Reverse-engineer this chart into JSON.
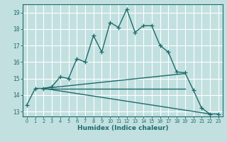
{
  "title": "",
  "xlabel": "Humidex (Indice chaleur)",
  "bg_color": "#c2e0e0",
  "grid_color": "#ffffff",
  "line_color": "#1e6b6b",
  "xlim": [
    -0.5,
    23.5
  ],
  "ylim": [
    12.7,
    19.5
  ],
  "yticks": [
    13,
    14,
    15,
    16,
    17,
    18,
    19
  ],
  "xticks": [
    0,
    1,
    2,
    3,
    4,
    5,
    6,
    7,
    8,
    9,
    10,
    11,
    12,
    13,
    14,
    15,
    16,
    17,
    18,
    19,
    20,
    21,
    22,
    23
  ],
  "line1_x": [
    0,
    1,
    2,
    3,
    4,
    5,
    6,
    7,
    8,
    9,
    10,
    11,
    12,
    13,
    14,
    15,
    16,
    17,
    18,
    19,
    20,
    21,
    22,
    23
  ],
  "line1_y": [
    13.4,
    14.4,
    14.4,
    14.5,
    15.1,
    15.0,
    16.2,
    16.0,
    17.6,
    16.6,
    18.4,
    18.1,
    19.2,
    17.8,
    18.2,
    18.2,
    17.0,
    16.6,
    15.4,
    15.35,
    14.3,
    13.2,
    12.85,
    12.85
  ],
  "line2_x": [
    2,
    19
  ],
  "line2_y": [
    14.4,
    15.3
  ],
  "line3_x": [
    2,
    19
  ],
  "line3_y": [
    14.4,
    14.4
  ],
  "line4_x": [
    2,
    22
  ],
  "line4_y": [
    14.4,
    12.85
  ],
  "marker": "+",
  "markersize": 4,
  "linewidth": 1.0
}
